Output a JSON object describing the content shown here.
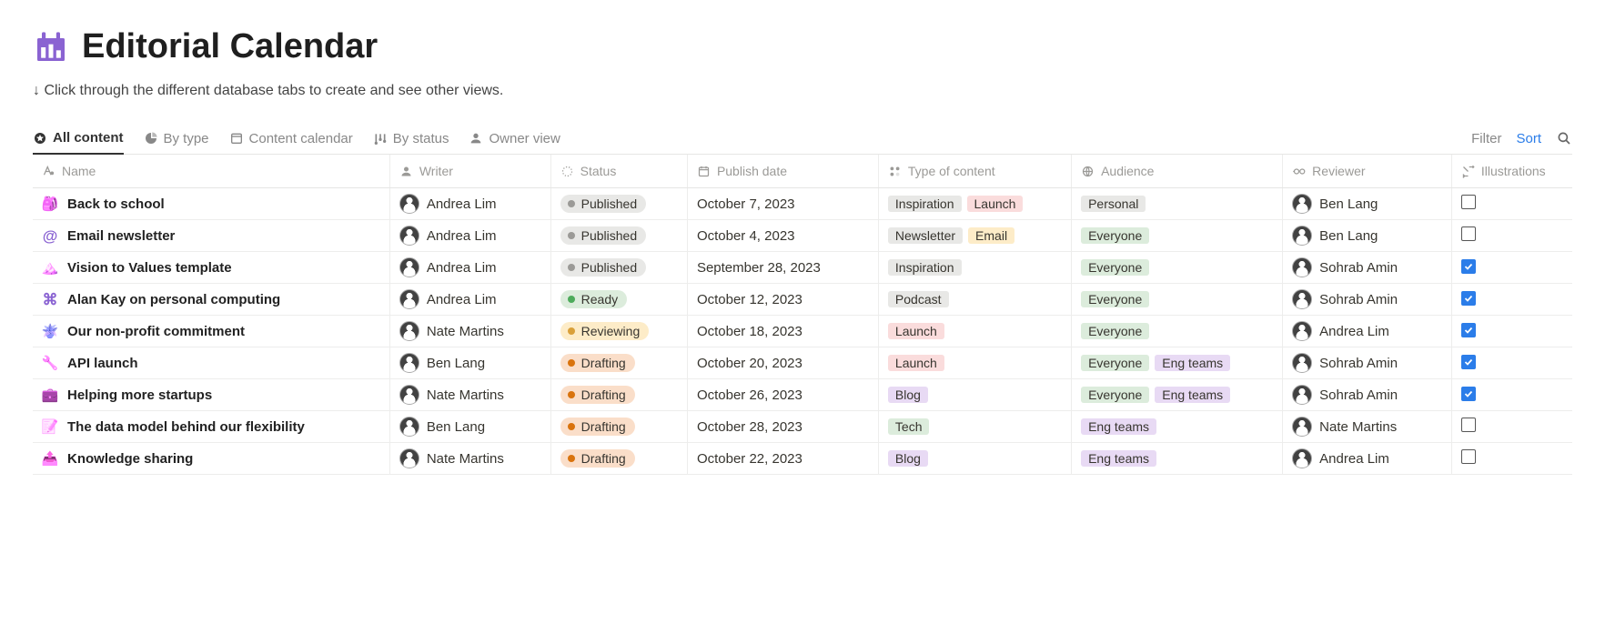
{
  "page": {
    "title": "Editorial Calendar",
    "subtitle": "↓ Click through the different database tabs to create and see other views.",
    "icon_color": "#8a63d2"
  },
  "tabs": [
    {
      "label": "All content",
      "icon": "star",
      "active": true
    },
    {
      "label": "By type",
      "icon": "pie",
      "active": false
    },
    {
      "label": "Content calendar",
      "icon": "calendar",
      "active": false
    },
    {
      "label": "By status",
      "icon": "board",
      "active": false
    },
    {
      "label": "Owner view",
      "icon": "person",
      "active": false
    }
  ],
  "actions": {
    "filter": "Filter",
    "sort": "Sort"
  },
  "columns": {
    "name": "Name",
    "writer": "Writer",
    "status": "Status",
    "publish_date": "Publish date",
    "type": "Type of content",
    "audience": "Audience",
    "reviewer": "Reviewer",
    "illustrations": "Illustrations"
  },
  "status_styles": {
    "Published": {
      "bg": "#e8e8e6",
      "dot": "#9b9a97"
    },
    "Ready": {
      "bg": "#dcecdc",
      "dot": "#4dab5b"
    },
    "Reviewing": {
      "bg": "#fdecc8",
      "dot": "#d9a03a"
    },
    "Drafting": {
      "bg": "#fadec9",
      "dot": "#d9730d"
    }
  },
  "tag_colors": {
    "Inspiration": "#e8e8e6",
    "Launch": "#fadcdc",
    "Newsletter": "#e8e8e6",
    "Email": "#fdecc8",
    "Podcast": "#e8e8e6",
    "Blog": "#e8daf4",
    "Tech": "#dcecdc",
    "Personal": "#e8e8e6",
    "Everyone": "#dcecdc",
    "Eng teams": "#e8daf4"
  },
  "row_icons": {
    "backpack": {
      "type": "emoji",
      "glyph": "🎒",
      "hue": 250
    },
    "at": {
      "type": "char",
      "glyph": "@",
      "color": "#8a63d2",
      "weight": 700,
      "size": 17
    },
    "mountains": {
      "type": "emoji",
      "glyph": "🏔️",
      "hue": 240
    },
    "command": {
      "type": "char",
      "glyph": "⌘",
      "color": "#8a63d2",
      "weight": 600,
      "size": 17
    },
    "plant": {
      "type": "emoji",
      "glyph": "🪴",
      "hue": 200
    },
    "api": {
      "type": "emoji",
      "glyph": "🔧",
      "hue": 250
    },
    "briefcase": {
      "type": "emoji",
      "glyph": "💼",
      "hue": 250
    },
    "edit": {
      "type": "emoji",
      "glyph": "📝",
      "hue": 260
    },
    "share": {
      "type": "emoji",
      "glyph": "📤",
      "hue": 260
    }
  },
  "rows": [
    {
      "icon": "backpack",
      "name": "Back to school",
      "writer": "Andrea Lim",
      "status": "Published",
      "date": "October 7, 2023",
      "types": [
        "Inspiration",
        "Launch"
      ],
      "audience": [
        "Personal"
      ],
      "reviewer": "Ben Lang",
      "illustrations": false
    },
    {
      "icon": "at",
      "name": "Email newsletter",
      "writer": "Andrea Lim",
      "status": "Published",
      "date": "October 4, 2023",
      "types": [
        "Newsletter",
        "Email"
      ],
      "audience": [
        "Everyone"
      ],
      "reviewer": "Ben Lang",
      "illustrations": false
    },
    {
      "icon": "mountains",
      "name": "Vision to Values template",
      "writer": "Andrea Lim",
      "status": "Published",
      "date": "September 28, 2023",
      "types": [
        "Inspiration"
      ],
      "audience": [
        "Everyone"
      ],
      "reviewer": "Sohrab Amin",
      "illustrations": true
    },
    {
      "icon": "command",
      "name": "Alan Kay on personal computing",
      "writer": "Andrea Lim",
      "status": "Ready",
      "date": "October 12, 2023",
      "types": [
        "Podcast"
      ],
      "audience": [
        "Everyone"
      ],
      "reviewer": "Sohrab Amin",
      "illustrations": true
    },
    {
      "icon": "plant",
      "name": "Our non-profit commitment",
      "writer": "Nate Martins",
      "status": "Reviewing",
      "date": "October 18, 2023",
      "types": [
        "Launch"
      ],
      "audience": [
        "Everyone"
      ],
      "reviewer": "Andrea Lim",
      "illustrations": true
    },
    {
      "icon": "api",
      "name": "API launch",
      "writer": "Ben Lang",
      "status": "Drafting",
      "date": "October 20, 2023",
      "types": [
        "Launch"
      ],
      "audience": [
        "Everyone",
        "Eng teams"
      ],
      "reviewer": "Sohrab Amin",
      "illustrations": true
    },
    {
      "icon": "briefcase",
      "name": "Helping more startups",
      "writer": "Nate Martins",
      "status": "Drafting",
      "date": "October 26, 2023",
      "types": [
        "Blog"
      ],
      "audience": [
        "Everyone",
        "Eng teams"
      ],
      "reviewer": "Sohrab Amin",
      "illustrations": true
    },
    {
      "icon": "edit",
      "name": "The data model behind our flexibility",
      "writer": "Ben Lang",
      "status": "Drafting",
      "date": "October 28, 2023",
      "types": [
        "Tech"
      ],
      "audience": [
        "Eng teams"
      ],
      "reviewer": "Nate Martins",
      "illustrations": false
    },
    {
      "icon": "share",
      "name": "Knowledge sharing",
      "writer": "Nate Martins",
      "status": "Drafting",
      "date": "October 22, 2023",
      "types": [
        "Blog"
      ],
      "audience": [
        "Eng teams"
      ],
      "reviewer": "Andrea Lim",
      "illustrations": false
    }
  ]
}
